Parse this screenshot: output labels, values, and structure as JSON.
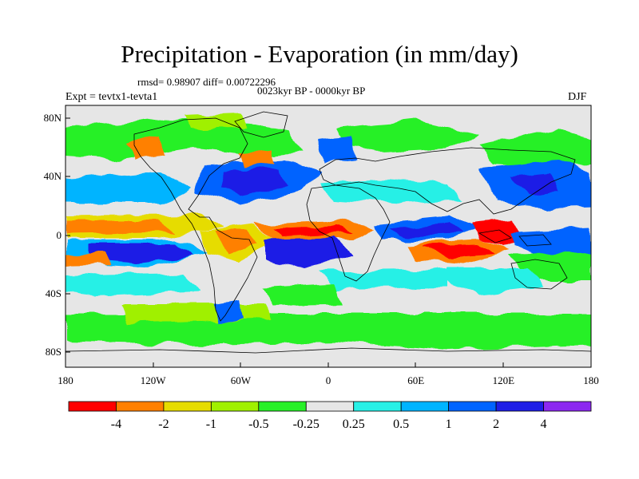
{
  "title": "Precipitation - Evaporation (in mm/day)",
  "stats": "rmsd= 0.98907 diff= 0.00722296",
  "period": "0023kyr BP - 0000kyr BP",
  "experiment": "Expt = tevtx1-tevta1",
  "season": "DJF",
  "lat_ticks": [
    "80N",
    "40N",
    "0",
    "40S",
    "80S"
  ],
  "lon_ticks": [
    "180",
    "120W",
    "60W",
    "0",
    "60E",
    "120E",
    "180"
  ],
  "colorbar": {
    "colors": [
      "#ff0000",
      "#ff8000",
      "#e6dc00",
      "#a0f000",
      "#28f028",
      "#e6e6e6",
      "#28f0e6",
      "#00b4ff",
      "#0064ff",
      "#1e1ee6",
      "#8c28f0"
    ],
    "labels": [
      "-4",
      "-2",
      "-1",
      "-0.5",
      "-0.25",
      "0.25",
      "0.5",
      "1",
      "2",
      "4"
    ]
  }
}
